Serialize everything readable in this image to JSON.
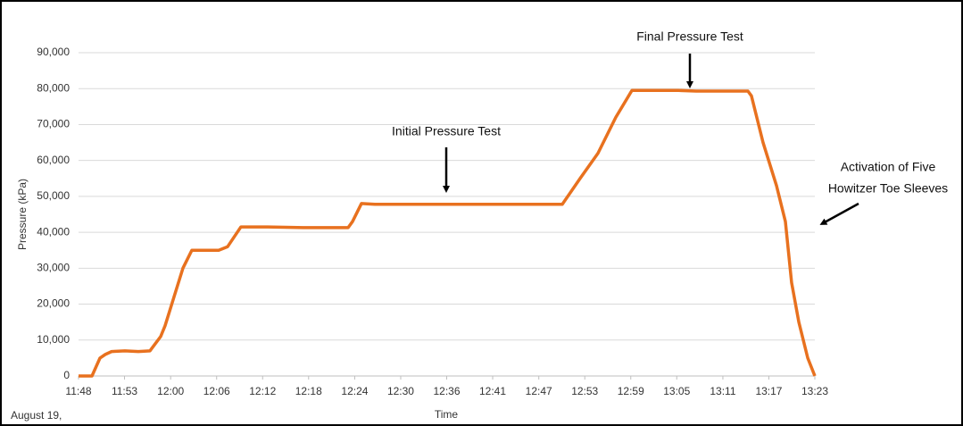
{
  "chart_data": {
    "type": "line",
    "ylabel": "Pressure (kPa)",
    "xlabel": "Time",
    "color": "#e8711f",
    "grid": true,
    "annotations": [
      "Final Pressure Test",
      "Initial Pressure Test",
      "Activation of Five",
      "Howitzer Toe Sleeves",
      "August 19,"
    ],
    "xlim": [
      "11:48:00",
      "13:23:00"
    ],
    "xticks": [
      {
        "value": "11:48:00",
        "label": "11:48"
      },
      {
        "value": "11:53:56",
        "label": "11:53"
      },
      {
        "value": "11:59:53",
        "label": "12:00"
      },
      {
        "value": "12:05:49",
        "label": "12:06"
      },
      {
        "value": "12:11:45",
        "label": "12:12"
      },
      {
        "value": "12:17:41",
        "label": "12:18"
      },
      {
        "value": "12:23:38",
        "label": "12:24"
      },
      {
        "value": "12:29:34",
        "label": "12:30"
      },
      {
        "value": "12:35:30",
        "label": "12:36"
      },
      {
        "value": "12:41:26",
        "label": "12:41"
      },
      {
        "value": "12:47:23",
        "label": "12:47"
      },
      {
        "value": "12:53:19",
        "label": "12:53"
      },
      {
        "value": "12:59:15",
        "label": "12:59"
      },
      {
        "value": "13:05:11",
        "label": "13:05"
      },
      {
        "value": "13:11:08",
        "label": "13:11"
      },
      {
        "value": "13:17:04",
        "label": "13:17"
      },
      {
        "value": "13:23:00",
        "label": "13:23"
      }
    ],
    "ylim": [
      0,
      90000
    ],
    "yticks": [
      0,
      {
        "value": 10000,
        "label": "10,000"
      },
      {
        "value": 20000,
        "label": "20,000"
      },
      {
        "value": 30000,
        "label": "30,000"
      },
      {
        "value": 40000,
        "label": "40,000"
      },
      {
        "value": 50000,
        "label": "50,000"
      },
      {
        "value": 60000,
        "label": "60,000"
      },
      {
        "value": 70000,
        "label": "70,000"
      },
      {
        "value": 80000,
        "label": "80,000"
      },
      {
        "value": 90000,
        "label": "90,000"
      }
    ],
    "x": [
      "11:48:00",
      "11:49:44",
      "11:50:46",
      "11:51:27",
      "11:52:16",
      "11:53:59",
      "11:55:43",
      "11:57:13",
      "11:58:36",
      "11:59:10",
      "12:00:19",
      "12:01:28",
      "12:02:37",
      "12:06:05",
      "12:07:14",
      "12:08:57",
      "12:12:25",
      "12:17:01",
      "12:22:47",
      "12:23:21",
      "12:24:30",
      "12:26:14",
      "12:35:27",
      "12:46:57",
      "12:50:25",
      "12:52:43",
      "12:55:01",
      "12:57:19",
      "12:59:24",
      "13:05:23",
      "13:07:41",
      "13:14:22",
      "13:14:49",
      "13:16:19",
      "13:18:03",
      "13:19:12",
      "13:20:00",
      "13:20:56",
      "13:22:05",
      "13:23:00"
    ],
    "values": [
      0,
      0,
      5000,
      6000,
      6800,
      7000,
      6800,
      7000,
      11000,
      14000,
      22000,
      30000,
      35000,
      35000,
      36000,
      41500,
      41500,
      41300,
      41300,
      43000,
      48000,
      47800,
      47800,
      47800,
      47800,
      55000,
      62000,
      72000,
      79500,
      79500,
      79300,
      79300,
      78000,
      65000,
      53000,
      43000,
      26000,
      15000,
      5000,
      0
    ]
  }
}
